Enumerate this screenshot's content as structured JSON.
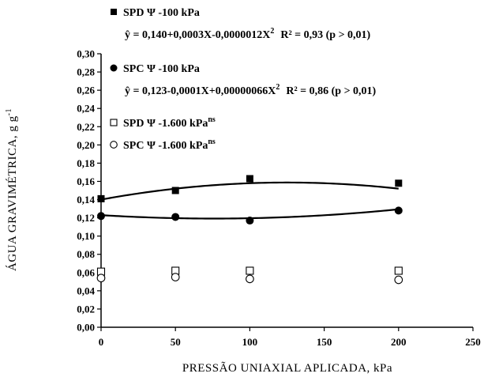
{
  "chart_data": {
    "type": "scatter",
    "xlabel": "PRESSÃO UNIAXIAL APLICADA, kPa",
    "ylabel": "ÁGUA GRAVIMÉTRICA, g g",
    "ylabel_sup": "-1",
    "xlim": [
      0,
      250
    ],
    "ylim": [
      0,
      0.3
    ],
    "x_ticks": [
      0,
      50,
      100,
      150,
      200,
      250
    ],
    "x_tick_labels": [
      "0",
      "50",
      "100",
      "150",
      "200",
      "250"
    ],
    "y_ticks": [
      0,
      0.02,
      0.04,
      0.06,
      0.08,
      0.1,
      0.12,
      0.14,
      0.16,
      0.18,
      0.2,
      0.22,
      0.24,
      0.26,
      0.28,
      0.3
    ],
    "y_tick_labels": [
      "0,00",
      "0,02",
      "0,04",
      "0,06",
      "0,08",
      "0,10",
      "0,12",
      "0,14",
      "0,16",
      "0,18",
      "0,20",
      "0,22",
      "0,24",
      "0,26",
      "0,28",
      "0,30"
    ],
    "grid": false,
    "legend_position": "top",
    "series": [
      {
        "name": "SPD Ψ -100 kPa",
        "marker": "filled-square",
        "x": [
          0,
          50,
          100,
          200
        ],
        "y": [
          0.141,
          0.15,
          0.163,
          0.158
        ],
        "fit": {
          "a": 0.14,
          "b": 0.0003,
          "c": -1.2e-06
        },
        "equation": "ŷ  = 0,140+0,0003X-0,0000012X",
        "r2": "R² = 0,93  (p > 0,01)"
      },
      {
        "name": "SPC Ψ -100 kPa",
        "marker": "filled-circle",
        "x": [
          0,
          50,
          100,
          200
        ],
        "y": [
          0.122,
          0.121,
          0.117,
          0.128
        ],
        "fit": {
          "a": 0.123,
          "b": -0.0001,
          "c": 6.6e-07
        },
        "equation": "ŷ  = 0,123-0,0001X+0,00000066X",
        "r2": "R² = 0,86  (p > 0,01)"
      },
      {
        "name": "SPD Ψ -1.600 kPa",
        "name_sup": "ns",
        "marker": "open-square",
        "x": [
          0,
          50,
          100,
          200
        ],
        "y": [
          0.061,
          0.062,
          0.062,
          0.062
        ]
      },
      {
        "name": "SPC Ψ -1.600 kPa",
        "name_sup": "ns",
        "marker": "open-circle",
        "x": [
          0,
          50,
          100,
          200
        ],
        "y": [
          0.054,
          0.055,
          0.053,
          0.052
        ]
      }
    ]
  }
}
